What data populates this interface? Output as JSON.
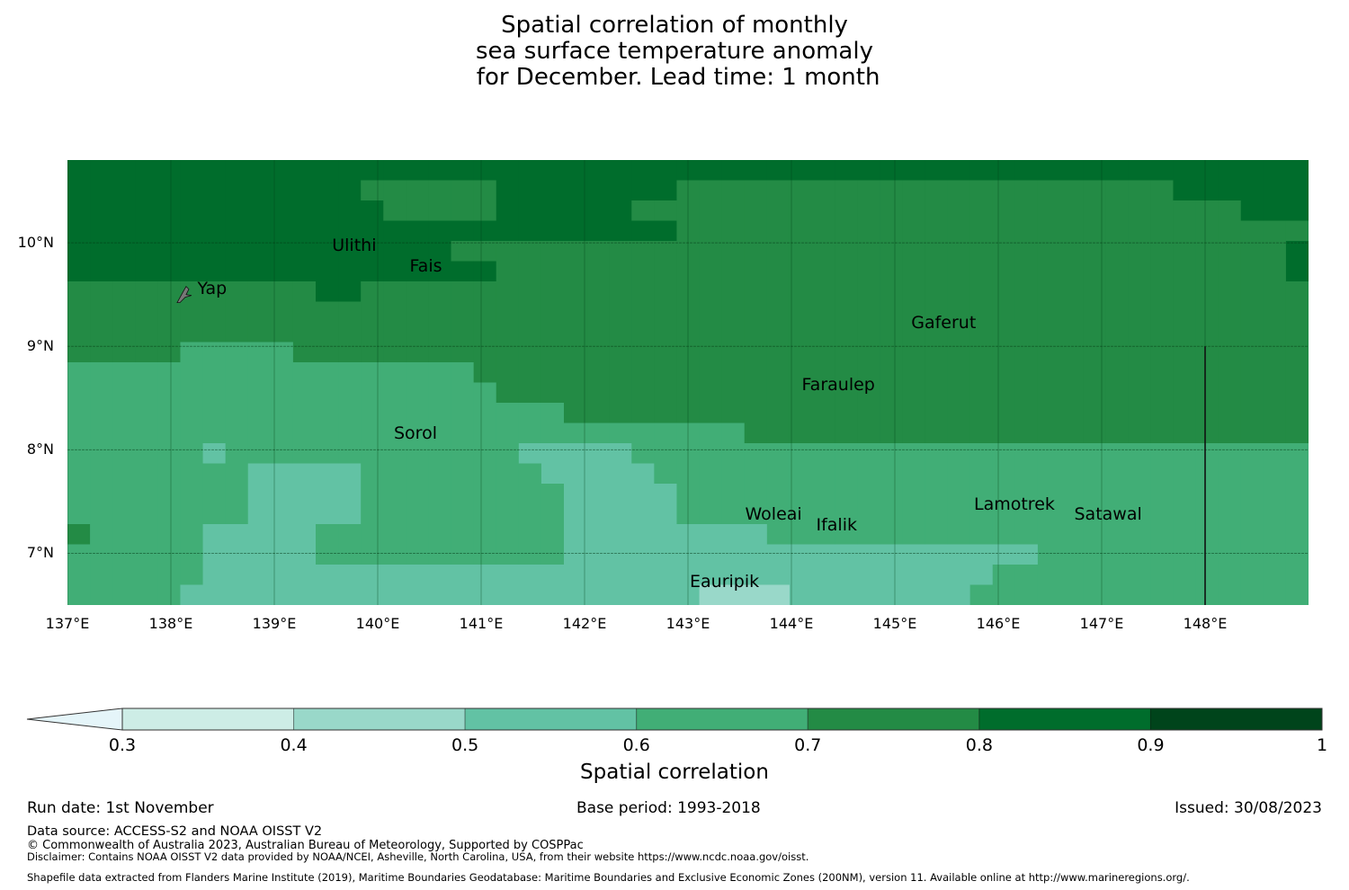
{
  "title": {
    "lines": [
      "Spatial correlation of monthly",
      "sea surface temperature anomaly",
      " for December. Lead time: 1 month"
    ]
  },
  "chart_data": {
    "type": "heatmap",
    "title": "Spatial correlation of monthly sea surface temperature anomaly for December. Lead time: 1 month",
    "xlabel": "",
    "ylabel": "",
    "lon_range": [
      137,
      149
    ],
    "lat_range": [
      6.5,
      10.8
    ],
    "x_ticks": [
      "137°E",
      "138°E",
      "139°E",
      "140°E",
      "141°E",
      "142°E",
      "143°E",
      "144°E",
      "145°E",
      "146°E",
      "147°E",
      "148°E"
    ],
    "x_tick_values": [
      137,
      138,
      139,
      140,
      141,
      142,
      143,
      144,
      145,
      146,
      147,
      148
    ],
    "y_ticks": [
      "10°N",
      "9°N",
      "8°N",
      "7°N"
    ],
    "y_tick_values": [
      10,
      9,
      8,
      7
    ],
    "grid": true,
    "cell_deg": 0.25,
    "note": "Rows run north to south from ~10.75°N to ~6.5°N; columns west to east from 137°E. Values are class midpoints of correlation bins.",
    "grid_rows_classes": [
      "8888888888888888888888888888888888888888888888888888888",
      "8888888888888777777888888887777777777777777777777888888",
      "8888888888888877777888888777777777777777777777777777888",
      "8888888888888888888888888887777777777777777777777777777",
      "8888888888888888877777777777777777777777777777777777778",
      "8888888888888888888777777777777777777777777777777777778",
      "7777777777788777777777777777777777777777777777777777777",
      "7777777777777777777777777777777777777777777777777777777",
      "7777777777777777777777777777777777777777777777777777777",
      "7777766666777777777777777777777777777777777777777777777",
      "6666666666666666667777777777777777777777777777777777777",
      "6666666666666666666777777777777777777777777777777777777",
      "6666666666666666666666777777777777777777777777777777777",
      "6666666666666666666666666666667777777777777777777777777",
      "6666665666666666666655555666666666666666666666666666666",
      "6666666655555666666665555566666666666666666666666666666",
      "6666666655555666666666555556666666666666666666666666666",
      "6666666655555666666666555556666666666666666666666666666",
      "7666665555566666666666555555555666666666666666666666666",
      "6666665555566666666666555555555555555555555666666666666",
      "6666665555555555555555555555555555555555566666666666666",
      "6666655555555555555555555555444455555555666666666666666"
    ],
    "class_values": {
      "4": 0.45,
      "5": 0.55,
      "6": 0.65,
      "7": 0.75,
      "8": 0.85
    },
    "colorbar": {
      "label": "Spatial correlation",
      "ticks": [
        "0.3",
        "0.4",
        "0.5",
        "0.6",
        "0.7",
        "0.8",
        "0.9",
        "1"
      ],
      "boundaries": [
        0.3,
        0.4,
        0.5,
        0.6,
        0.7,
        0.8,
        0.9,
        1.0
      ],
      "colors": [
        "#cdede6",
        "#99d8c9",
        "#62c2a4",
        "#41ae76",
        "#238b45",
        "#006d2c",
        "#00441b"
      ],
      "under_color": "#e5f5f9",
      "extend": "min"
    },
    "places": [
      {
        "name": "Ulithi",
        "lon": 139.75,
        "lat": 9.95
      },
      {
        "name": "Fais",
        "lon": 140.5,
        "lat": 9.75
      },
      {
        "name": "Yap",
        "lon": 138.1,
        "lat": 9.55
      },
      {
        "name": "Gaferut",
        "lon": 145.35,
        "lat": 9.2
      },
      {
        "name": "Faraulep",
        "lon": 144.5,
        "lat": 8.6
      },
      {
        "name": "Sorol",
        "lon": 140.4,
        "lat": 8.15
      },
      {
        "name": "Woleai",
        "lon": 143.9,
        "lat": 7.35
      },
      {
        "name": "Ifalik",
        "lon": 144.5,
        "lat": 7.25
      },
      {
        "name": "Lamotrek",
        "lon": 146.2,
        "lat": 7.45
      },
      {
        "name": "Satawal",
        "lon": 147.1,
        "lat": 7.35
      },
      {
        "name": "Eauripik",
        "lon": 143.4,
        "lat": 6.7
      }
    ],
    "boundary_line": {
      "lon": 148.0,
      "lat_top": 9.0,
      "lat_bottom": 6.5
    }
  },
  "colorbar_label": "Spatial correlation",
  "footer": {
    "run_date": "Run date: 1st November",
    "base_period": "Base period: 1993-2018",
    "issued": "Issued: 30/08/2023",
    "data_source": "Data source: ACCESS-S2 and NOAA OISST V2",
    "copyright": "© Commonwealth of Australia 2023, Australian Bureau of Meteorology, Supported by COSPPac",
    "disclaimer": "Disclaimer: Contains NOAA OISST V2 data provided by NOAA/NCEI, Asheville, North Carolina, USA, from their website https://www.ncdc.noaa.gov/oisst.",
    "shapefile": "Shapefile data extracted from Flanders Marine Institute (2019), Maritime Boundaries Geodatabase: Maritime Boundaries and Exclusive Economic Zones (200NM), version 11. Available online at http://www.marineregions.org/."
  }
}
